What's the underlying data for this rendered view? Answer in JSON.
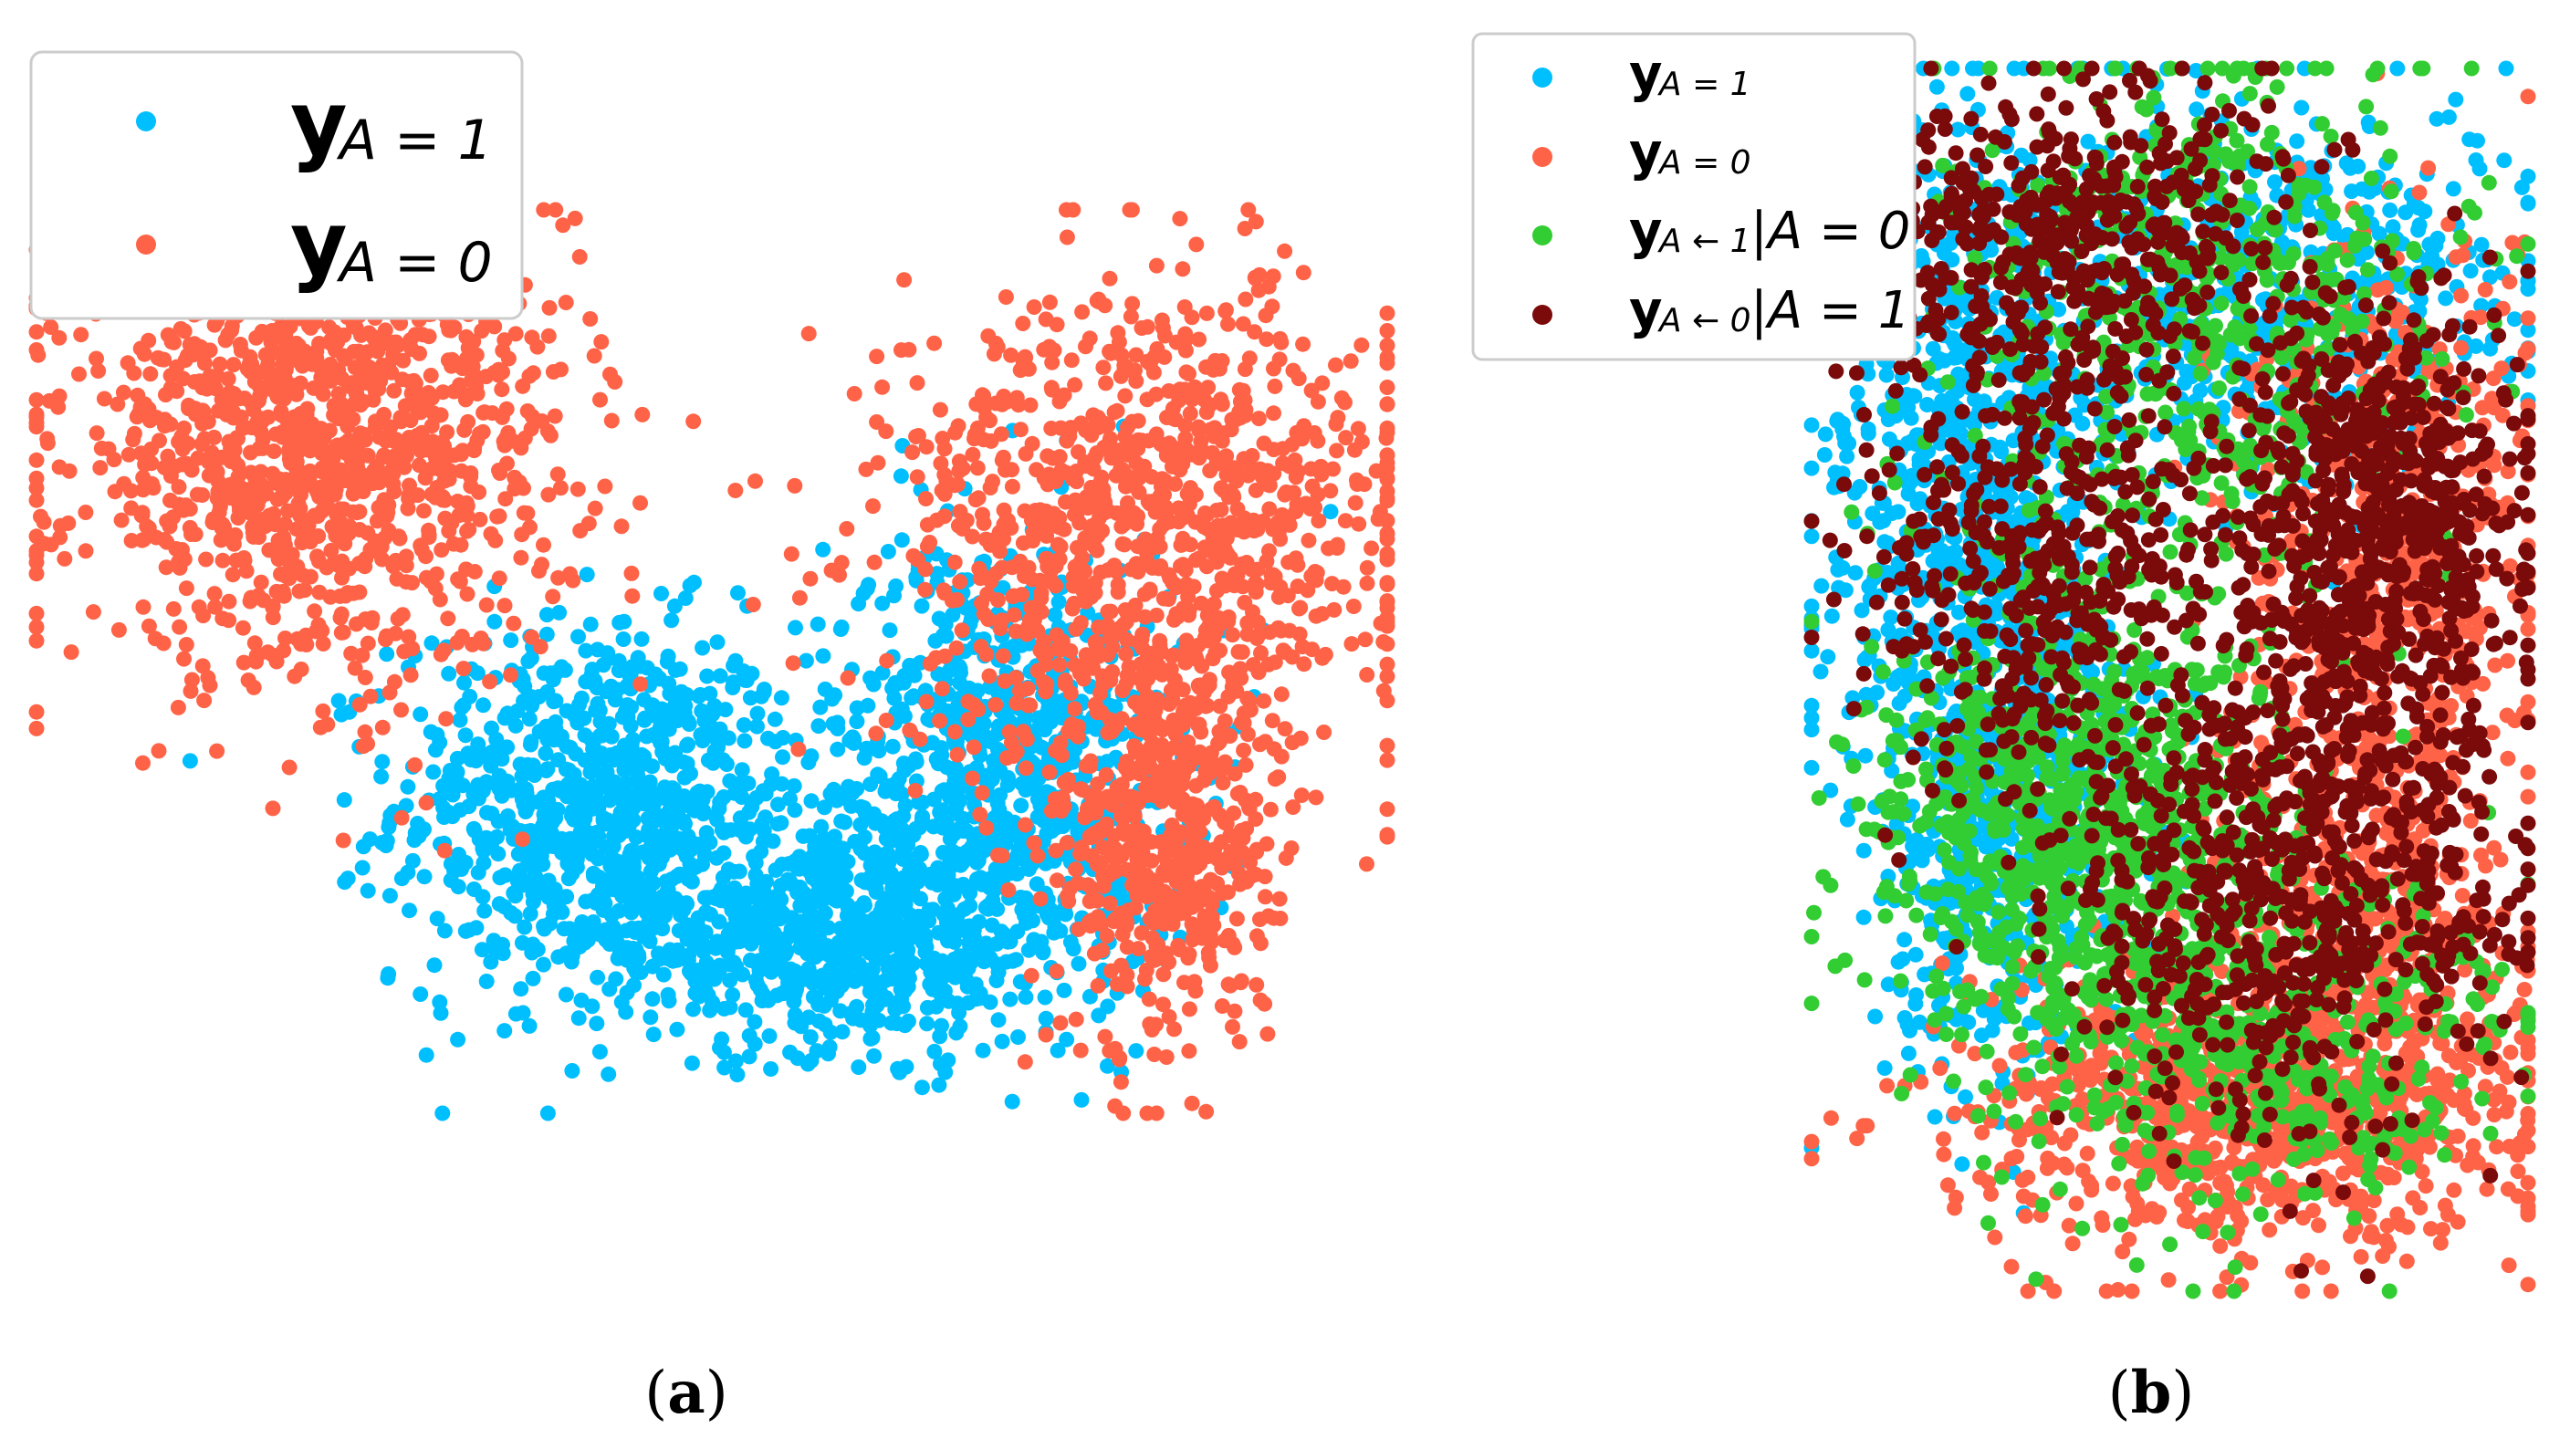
{
  "chart_data": [
    {
      "type": "scatter",
      "title": "",
      "xlabel": "",
      "ylabel": "",
      "axes": "off",
      "grid": false,
      "legend_position": "top-left",
      "caption": {
        "open": "(",
        "letter": "a",
        "close": ")"
      },
      "series": [
        {
          "name": "y_{A=1}",
          "label_main": "y",
          "label_sub": "A = 1",
          "color": "#00BFFF",
          "approx_points": 2400,
          "clusters": [
            {
              "cx": -2.0,
              "cy": -0.6,
              "sx": 0.9,
              "sy": 0.7,
              "weight": 0.35
            },
            {
              "cx": 0.0,
              "cy": -1.6,
              "sx": 1.1,
              "sy": 0.45,
              "weight": 0.3
            },
            {
              "cx": 1.6,
              "cy": -0.3,
              "sx": 0.8,
              "sy": 0.9,
              "weight": 0.35
            }
          ]
        },
        {
          "name": "y_{A=0}",
          "label_main": "y",
          "label_sub": "A = 0",
          "color": "#FF6347",
          "approx_points": 2800,
          "clusters": [
            {
              "cx": -4.5,
              "cy": 2.2,
              "sx": 1.1,
              "sy": 0.9,
              "weight": 0.45
            },
            {
              "cx": 2.9,
              "cy": 1.6,
              "sx": 1.2,
              "sy": 0.9,
              "weight": 0.35
            },
            {
              "cx": 3.0,
              "cy": -0.8,
              "sx": 0.5,
              "sy": 0.9,
              "weight": 0.2
            }
          ]
        }
      ],
      "xlim": [
        -7,
        5
      ],
      "ylim": [
        -3,
        4
      ]
    },
    {
      "type": "scatter",
      "title": "",
      "xlabel": "",
      "ylabel": "",
      "axes": "off",
      "grid": false,
      "legend_position": "top-left",
      "caption": {
        "open": "(",
        "letter": "b",
        "close": ")"
      },
      "series": [
        {
          "name": "y_{A=1}",
          "label_main": "y",
          "label_sub": "A = 1",
          "label_tail": "",
          "color": "#00BFFF",
          "approx_points": 1800,
          "clusters": [
            {
              "cx": -1.6,
              "cy": 1.2,
              "sx": 0.6,
              "sy": 1.3,
              "weight": 0.45
            },
            {
              "cx": 0.8,
              "cy": 2.5,
              "sx": 1.0,
              "sy": 0.6,
              "weight": 0.3
            },
            {
              "cx": -1.3,
              "cy": -1.2,
              "sx": 0.5,
              "sy": 0.8,
              "weight": 0.25
            }
          ]
        },
        {
          "name": "y_{A=0}",
          "label_main": "y",
          "label_sub": "A = 0",
          "label_tail": "",
          "color": "#FF6347",
          "approx_points": 1800,
          "clusters": [
            {
              "cx": 0.6,
              "cy": -3.0,
              "sx": 1.1,
              "sy": 0.5,
              "weight": 0.45
            },
            {
              "cx": 1.7,
              "cy": 0.8,
              "sx": 0.6,
              "sy": 1.0,
              "weight": 0.3
            },
            {
              "cx": 1.5,
              "cy": -1.8,
              "sx": 0.6,
              "sy": 0.8,
              "weight": 0.25
            }
          ]
        },
        {
          "name": "y_{A<-1}|A=0",
          "label_main": "y",
          "label_sub": "A ← 1",
          "label_tail": "|A = 0",
          "color": "#32CD32",
          "approx_points": 1900,
          "clusters": [
            {
              "cx": -0.7,
              "cy": -1.0,
              "sx": 0.8,
              "sy": 0.8,
              "weight": 0.45
            },
            {
              "cx": 0.2,
              "cy": 2.3,
              "sx": 1.0,
              "sy": 0.9,
              "weight": 0.3
            },
            {
              "cx": 0.6,
              "cy": -2.5,
              "sx": 1.0,
              "sy": 0.6,
              "weight": 0.25
            }
          ]
        },
        {
          "name": "y_{A<-0}|A=1",
          "label_main": "y",
          "label_sub": "A ← 0",
          "label_tail": "|A = 1",
          "color": "#7B0A0A",
          "approx_points": 2300,
          "clusters": [
            {
              "cx": 1.6,
              "cy": 1.0,
              "sx": 0.6,
              "sy": 0.7,
              "weight": 0.3
            },
            {
              "cx": -0.8,
              "cy": 2.9,
              "sx": 0.9,
              "sy": 0.5,
              "weight": 0.2
            },
            {
              "cx": 0.9,
              "cy": -1.4,
              "sx": 0.9,
              "sy": 0.8,
              "weight": 0.3
            },
            {
              "cx": -1.0,
              "cy": 0.8,
              "sx": 0.7,
              "sy": 0.9,
              "weight": 0.2
            }
          ]
        }
      ],
      "xlim": [
        -2.8,
        2.8
      ],
      "ylim": [
        -4.2,
        4.0
      ]
    }
  ]
}
